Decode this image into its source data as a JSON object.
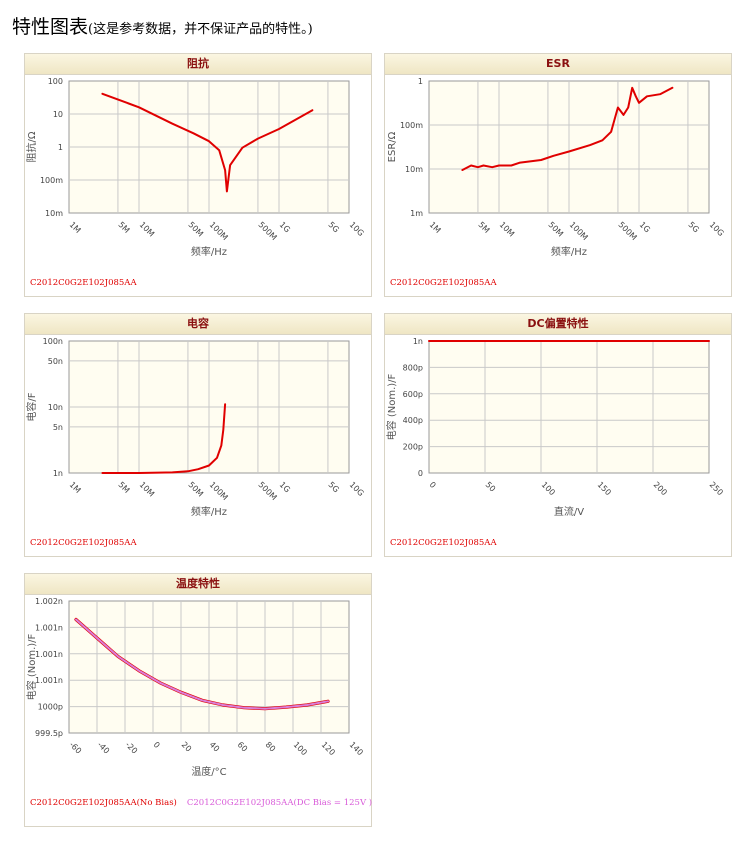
{
  "header": {
    "title": "特性图表",
    "note": "(这是参考数据，并不保证产品的特性。)"
  },
  "part_number": "C2012C0G2E102J085AA",
  "colors": {
    "series": "#e00000",
    "series_dc": "#d97ed9",
    "panel_bg": "#fffdf1",
    "title": "#8a1010"
  },
  "chart_data": [
    {
      "id": "impedance",
      "type": "line",
      "title": "阻抗",
      "scale": "log-log",
      "xlabel": "频率/Hz",
      "ylabel": "阻抗/Ω",
      "xlim": [
        1000000,
        10000000000
      ],
      "ylim": [
        0.01,
        100
      ],
      "x_ticks": [
        1000000,
        5000000,
        10000000,
        50000000,
        100000000,
        500000000,
        1000000000,
        5000000000,
        10000000000
      ],
      "x_tick_labels": [
        "1M",
        "5M",
        "10M",
        "50M",
        "100M",
        "500M",
        "1G",
        "5G",
        "10G"
      ],
      "y_ticks": [
        0.01,
        0.1,
        1,
        10,
        100
      ],
      "y_tick_labels": [
        "10m",
        "100m",
        "1",
        "10",
        "100"
      ],
      "grid": true,
      "series": [
        {
          "color": "#e00000",
          "x": [
            3000000,
            10000000,
            30000000,
            60000000,
            100000000,
            140000000,
            170000000,
            180000000,
            200000000,
            300000000,
            500000000,
            1000000000,
            3000000000
          ],
          "y": [
            41,
            16,
            5.1,
            2.6,
            1.5,
            0.8,
            0.2,
            0.045,
            0.28,
            0.95,
            1.8,
            3.5,
            13
          ]
        }
      ],
      "legend": [
        {
          "label": "C2012C0G2E102J085AA",
          "color": "#e00000"
        }
      ]
    },
    {
      "id": "esr",
      "type": "line",
      "title": "ESR",
      "scale": "log-log",
      "xlabel": "频率/Hz",
      "ylabel": "ESR/Ω",
      "xlim": [
        1000000,
        10000000000
      ],
      "ylim": [
        0.001,
        1
      ],
      "x_ticks": [
        1000000,
        5000000,
        10000000,
        50000000,
        100000000,
        500000000,
        1000000000,
        5000000000,
        10000000000
      ],
      "x_tick_labels": [
        "1M",
        "5M",
        "10M",
        "50M",
        "100M",
        "500M",
        "1G",
        "5G",
        "10G"
      ],
      "y_ticks": [
        0.001,
        0.01,
        0.1,
        1
      ],
      "y_tick_labels": [
        "1m",
        "10m",
        "100m",
        "1"
      ],
      "grid": true,
      "series": [
        {
          "color": "#e00000",
          "x": [
            3000000,
            4000000,
            5000000,
            6000000,
            8000000,
            10000000,
            15000000,
            20000000,
            40000000,
            60000000,
            100000000,
            200000000,
            300000000,
            400000000,
            500000000,
            600000000,
            700000000,
            800000000,
            900000000,
            1000000000,
            1300000000,
            2000000000,
            3000000000
          ],
          "y": [
            0.0095,
            0.012,
            0.011,
            0.012,
            0.011,
            0.012,
            0.012,
            0.014,
            0.016,
            0.02,
            0.025,
            0.035,
            0.045,
            0.07,
            0.25,
            0.17,
            0.25,
            0.7,
            0.45,
            0.32,
            0.45,
            0.5,
            0.7
          ]
        }
      ],
      "legend": [
        {
          "label": "C2012C0G2E102J085AA",
          "color": "#e00000"
        }
      ]
    },
    {
      "id": "capacitance",
      "type": "line",
      "title": "电容",
      "scale": "log-log",
      "xlabel": "频率/Hz",
      "ylabel": "电容/F",
      "xlim": [
        1000000,
        10000000000
      ],
      "ylim": [
        1e-09,
        1e-07
      ],
      "x_ticks": [
        1000000,
        5000000,
        10000000,
        50000000,
        100000000,
        500000000,
        1000000000,
        5000000000,
        10000000000
      ],
      "x_tick_labels": [
        "1M",
        "5M",
        "10M",
        "50M",
        "100M",
        "500M",
        "1G",
        "5G",
        "10G"
      ],
      "y_ticks": [
        1e-09,
        5e-09,
        1e-08,
        5e-08,
        1e-07
      ],
      "y_tick_labels": [
        "1n",
        "5n",
        "10n",
        "50n",
        "100n"
      ],
      "grid": true,
      "series": [
        {
          "color": "#e00000",
          "x": [
            3000000,
            10000000,
            30000000,
            50000000,
            70000000,
            100000000,
            130000000,
            150000000,
            160000000,
            170000000
          ],
          "y": [
            1e-09,
            1e-09,
            1.02e-09,
            1.06e-09,
            1.14e-09,
            1.3e-09,
            1.7e-09,
            2.6e-09,
            4.5e-09,
            1.1e-08
          ]
        }
      ],
      "legend": [
        {
          "label": "C2012C0G2E102J085AA",
          "color": "#e00000"
        }
      ]
    },
    {
      "id": "dc-bias",
      "type": "line",
      "title": "DC偏置特性",
      "scale": "linear",
      "xlabel": "直流/V",
      "ylabel": "电容 (Nom.)/F",
      "xlim": [
        0,
        250
      ],
      "ylim": [
        0,
        1e-09
      ],
      "x_ticks": [
        0,
        50,
        100,
        150,
        200,
        250
      ],
      "x_tick_labels": [
        "0",
        "50",
        "100",
        "150",
        "200",
        "250"
      ],
      "y_ticks": [
        0,
        2e-10,
        4e-10,
        6e-10,
        8e-10,
        1e-09
      ],
      "y_tick_labels": [
        "0",
        "200p",
        "400p",
        "600p",
        "800p",
        "1n"
      ],
      "grid": true,
      "series": [
        {
          "color": "#e00000",
          "x": [
            0,
            250
          ],
          "y": [
            1e-09,
            1e-09
          ]
        }
      ],
      "legend": [
        {
          "label": "C2012C0G2E102J085AA",
          "color": "#e00000"
        }
      ]
    },
    {
      "id": "temperature",
      "type": "line",
      "title": "温度特性",
      "scale": "linear",
      "xlabel": "温度/°C",
      "ylabel": "电容 (Nom.)/F",
      "xlim": [
        -60,
        140
      ],
      "ylim": [
        0.9995,
        1.002
      ],
      "x_ticks": [
        -60,
        -40,
        -20,
        0,
        20,
        40,
        60,
        80,
        100,
        120,
        140
      ],
      "x_tick_labels": [
        "-60",
        "-40",
        "-20",
        "0",
        "20",
        "40",
        "60",
        "80",
        "100",
        "120",
        "140"
      ],
      "y_ticks": [
        0.9995,
        1,
        1.0005,
        1.001,
        1.0015,
        1.002
      ],
      "y_tick_labels": [
        "999.5p",
        "1000p",
        "1.001n",
        "1.001n",
        "1.001n",
        "1.002n"
      ],
      "grid": true,
      "series": [
        {
          "name": "C2012C0G2E102J085AA(No Bias)",
          "color": "#e00000",
          "x": [
            -55,
            -40,
            -25,
            -10,
            5,
            20,
            35,
            50,
            65,
            80,
            95,
            110,
            125
          ],
          "y": [
            1.00165,
            1.0013,
            1.00095,
            1.00068,
            1.00045,
            1.00027,
            1.00012,
            1.00003,
            0.99998,
            0.99996,
            0.99999,
            1.00003,
            1.0001
          ]
        },
        {
          "name": "C2012C0G2E102J085AA(DC Bias = 125V )",
          "color": "#d97ed9",
          "x": [
            -55,
            -40,
            -25,
            -10,
            5,
            20,
            35,
            50,
            65,
            80,
            95,
            110,
            125
          ],
          "y": [
            1.00165,
            1.0013,
            1.00095,
            1.00068,
            1.00045,
            1.00027,
            1.00012,
            1.00003,
            0.99998,
            0.99996,
            0.99999,
            1.00003,
            1.0001
          ]
        }
      ],
      "legend": [
        {
          "label": "C2012C0G2E102J085AA(No Bias)",
          "color": "#e00000"
        },
        {
          "label": "C2012C0G2E102J085AA(DC Bias = 125V )",
          "color": "#d97ed9"
        }
      ]
    }
  ]
}
